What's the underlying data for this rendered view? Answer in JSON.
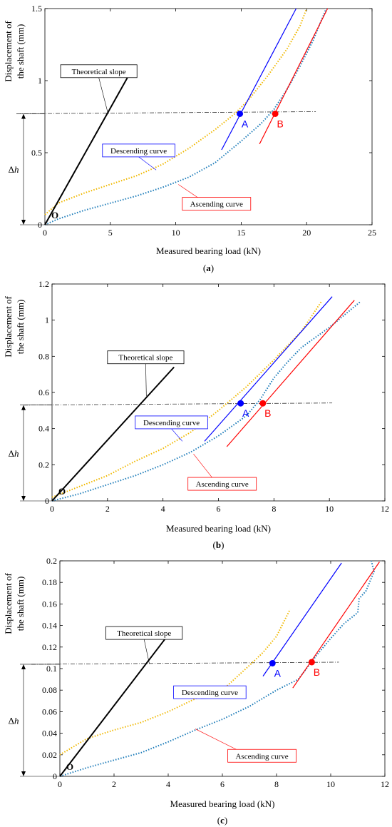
{
  "chart_data": [
    {
      "type": "line",
      "panel_label": "(a)",
      "xlabel": "Measured bearing load (kN)",
      "ylabel": [
        "Displacement of",
        "the shaft (mm)"
      ],
      "xlim": [
        0,
        25
      ],
      "ylim": [
        0,
        1.5
      ],
      "xticks": [
        0,
        5,
        10,
        15,
        20,
        25
      ],
      "yticks": [
        0,
        0.5,
        1,
        1.5
      ],
      "xtick_labels": [
        "0",
        "5",
        "10",
        "15",
        "20",
        "25"
      ],
      "ytick_labels": [
        "0",
        "0.5",
        "1",
        "1.5"
      ],
      "grid": false,
      "colors": {
        "descending": "#f0b800",
        "ascending": "#1a7ab8",
        "tangent_A": "#0000ff",
        "tangent_B": "#ff0000",
        "theoretical": "#000000"
      },
      "series": [
        {
          "role": "descending",
          "x": [
            0,
            1,
            3,
            5,
            7,
            9,
            11,
            13,
            14.5,
            15.5,
            17,
            18.5,
            19.5,
            20
          ],
          "y": [
            0.07,
            0.15,
            0.22,
            0.28,
            0.34,
            0.42,
            0.53,
            0.66,
            0.77,
            0.86,
            1.03,
            1.22,
            1.38,
            1.5
          ]
        },
        {
          "role": "ascending",
          "x": [
            0,
            1,
            3,
            5,
            7,
            9,
            11,
            13,
            15,
            16.5,
            17.5,
            18.5,
            19.5,
            20.5,
            21.5
          ],
          "y": [
            0,
            0.04,
            0.1,
            0.15,
            0.2,
            0.26,
            0.33,
            0.43,
            0.58,
            0.7,
            0.8,
            0.94,
            1.1,
            1.28,
            1.5
          ]
        },
        {
          "role": "theoretical",
          "x": [
            0,
            6.3
          ],
          "y": [
            0,
            1.02
          ]
        },
        {
          "role": "tangent_A",
          "x": [
            13.5,
            19.2
          ],
          "y": [
            0.52,
            1.5
          ]
        },
        {
          "role": "tangent_B",
          "x": [
            16.4,
            21.6
          ],
          "y": [
            0.56,
            1.5
          ]
        }
      ],
      "reference_y": 0.77,
      "reference_x_range": [
        0,
        20.7
      ],
      "points": [
        {
          "name": "A",
          "x": 14.9,
          "y": 0.77,
          "color": "#0000ff"
        },
        {
          "name": "B",
          "x": 17.6,
          "y": 0.77,
          "color": "#ff0000"
        }
      ],
      "origin_label": "O",
      "delta_label": "Δh",
      "annotations": [
        {
          "text": "Theoretical slope",
          "box_color": "#000000",
          "box_x": 1.2,
          "box_y": 1.11,
          "target_x": 4.8,
          "target_y": 0.78
        },
        {
          "text": "Descending curve",
          "box_color": "#0000ff",
          "box_x": 4.4,
          "box_y": 0.56,
          "target_x": 8.5,
          "target_y": 0.38
        },
        {
          "text": "Ascending curve",
          "box_color": "#ff0000",
          "box_x": 10.5,
          "box_y": 0.19,
          "target_x": 10.2,
          "target_y": 0.28
        }
      ]
    },
    {
      "type": "line",
      "panel_label": "(b)",
      "xlabel": "Measured bearing load (kN)",
      "ylabel": [
        "Displacement of",
        "the shaft (mm)"
      ],
      "xlim": [
        0,
        12
      ],
      "ylim": [
        0,
        1.2
      ],
      "xticks": [
        0,
        2,
        4,
        6,
        8,
        10,
        12
      ],
      "yticks": [
        0,
        0.2,
        0.4,
        0.6,
        0.8,
        1,
        1.2
      ],
      "xtick_labels": [
        "0",
        "2",
        "4",
        "6",
        "8",
        "10",
        "12"
      ],
      "ytick_labels": [
        "0",
        "0.2",
        "0.4",
        "0.6",
        "0.8",
        "1",
        "1.2"
      ],
      "grid": false,
      "colors": {
        "descending": "#f0b800",
        "ascending": "#1a7ab8",
        "tangent_A": "#0000ff",
        "tangent_B": "#ff0000",
        "theoretical": "#000000"
      },
      "series": [
        {
          "role": "descending",
          "x": [
            0,
            1,
            2,
            3,
            4,
            5,
            6,
            7,
            8,
            9,
            9.7
          ],
          "y": [
            0.02,
            0.08,
            0.14,
            0.22,
            0.29,
            0.38,
            0.5,
            0.63,
            0.78,
            0.94,
            1.1
          ]
        },
        {
          "role": "ascending",
          "x": [
            0,
            1,
            2,
            3,
            4,
            5,
            6,
            7,
            7.5,
            8,
            8.5,
            9,
            10,
            11.1
          ],
          "y": [
            0,
            0.04,
            0.09,
            0.14,
            0.2,
            0.27,
            0.36,
            0.47,
            0.56,
            0.68,
            0.77,
            0.85,
            0.96,
            1.1
          ]
        },
        {
          "role": "theoretical",
          "x": [
            0,
            4.4
          ],
          "y": [
            0,
            0.74
          ]
        },
        {
          "role": "tangent_A",
          "x": [
            5.5,
            10.1
          ],
          "y": [
            0.33,
            1.13
          ]
        },
        {
          "role": "tangent_B",
          "x": [
            6.3,
            10.9
          ],
          "y": [
            0.3,
            1.11
          ]
        }
      ],
      "reference_y": 0.53,
      "reference_x_range": [
        0,
        10.1
      ],
      "points": [
        {
          "name": "A",
          "x": 6.8,
          "y": 0.54,
          "color": "#0000ff"
        },
        {
          "name": "B",
          "x": 7.6,
          "y": 0.54,
          "color": "#ff0000"
        }
      ],
      "origin_label": "O",
      "delta_label": "Δh",
      "annotations": [
        {
          "text": "Theoretical slope",
          "box_color": "#000000",
          "box_x": 2.0,
          "box_y": 0.83,
          "target_x": 3.4,
          "target_y": 0.58
        },
        {
          "text": "Descending curve",
          "box_color": "#0000ff",
          "box_x": 3.0,
          "box_y": 0.47,
          "target_x": 4.7,
          "target_y": 0.33
        },
        {
          "text": "Ascending curve",
          "box_color": "#ff0000",
          "box_x": 4.9,
          "box_y": 0.13,
          "target_x": 5.1,
          "target_y": 0.26
        }
      ]
    },
    {
      "type": "line",
      "panel_label": "(c)",
      "xlabel": "Measured bearing load (kN)",
      "ylabel": [
        "Displacement of",
        "the shaft (mm)"
      ],
      "xlim": [
        0,
        12
      ],
      "ylim": [
        0,
        0.2
      ],
      "xticks": [
        0,
        2,
        4,
        6,
        8,
        10,
        12
      ],
      "yticks": [
        0,
        0.02,
        0.04,
        0.06,
        0.08,
        0.1,
        0.12,
        0.14,
        0.16,
        0.18,
        0.2
      ],
      "xtick_labels": [
        "0",
        "2",
        "4",
        "6",
        "8",
        "10",
        "12"
      ],
      "ytick_labels": [
        "0",
        "0.02",
        "0.04",
        "0.06",
        "0.08",
        "0.1",
        "0.12",
        "0.14",
        "0.16",
        "0.18",
        "0.2"
      ],
      "grid": false,
      "colors": {
        "descending": "#f0b800",
        "ascending": "#1a7ab8",
        "tangent_A": "#0000ff",
        "tangent_B": "#ff0000",
        "theoretical": "#000000"
      },
      "series": [
        {
          "role": "descending",
          "x": [
            0,
            1,
            2,
            3,
            4,
            5,
            6,
            7,
            7.5,
            8,
            8.5
          ],
          "y": [
            0.02,
            0.035,
            0.043,
            0.05,
            0.06,
            0.072,
            0.08,
            0.103,
            0.115,
            0.13,
            0.155
          ]
        },
        {
          "role": "ascending",
          "x": [
            0,
            1,
            2,
            3,
            4,
            5,
            6,
            7,
            8,
            8.8,
            9.5,
            10,
            10.5,
            11,
            11.05,
            11.3,
            11.6,
            11.5
          ],
          "y": [
            0,
            0.008,
            0.015,
            0.022,
            0.032,
            0.043,
            0.053,
            0.065,
            0.08,
            0.09,
            0.113,
            0.128,
            0.142,
            0.152,
            0.165,
            0.172,
            0.19,
            0.2
          ]
        },
        {
          "role": "theoretical",
          "x": [
            0,
            3.9
          ],
          "y": [
            0,
            0.128
          ]
        },
        {
          "role": "tangent_A",
          "x": [
            7.5,
            10.4
          ],
          "y": [
            0.093,
            0.198
          ]
        },
        {
          "role": "tangent_B",
          "x": [
            8.6,
            11.8
          ],
          "y": [
            0.082,
            0.199
          ]
        }
      ],
      "reference_y": 0.104,
      "reference_x_range": [
        0,
        10.3
      ],
      "points": [
        {
          "name": "A",
          "x": 7.85,
          "y": 0.105,
          "color": "#0000ff"
        },
        {
          "name": "B",
          "x": 9.3,
          "y": 0.106,
          "color": "#ff0000"
        }
      ],
      "origin_label": "O",
      "delta_label": "Δh",
      "annotations": [
        {
          "text": "Theoretical slope",
          "box_color": "#000000",
          "box_x": 1.7,
          "box_y": 0.139,
          "target_x": 3.3,
          "target_y": 0.105
        },
        {
          "text": "Descending curve",
          "box_color": "#0000ff",
          "box_x": 4.2,
          "box_y": 0.084,
          "target_x": 5.2,
          "target_y": 0.072
        },
        {
          "text": "Ascending curve",
          "box_color": "#ff0000",
          "box_x": 6.2,
          "box_y": 0.025,
          "target_x": 5.0,
          "target_y": 0.044
        }
      ]
    }
  ]
}
